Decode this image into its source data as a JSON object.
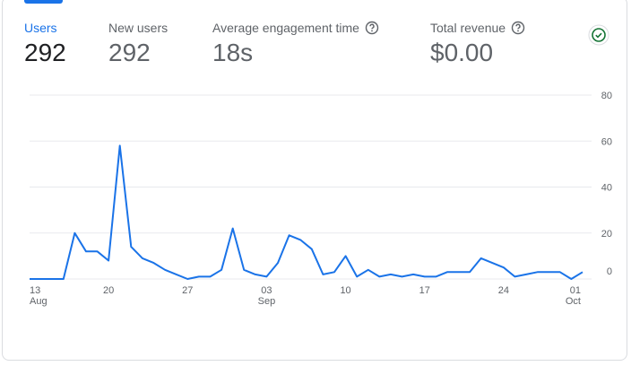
{
  "metrics": [
    {
      "label": "Users",
      "value": "292"
    },
    {
      "label": "New users",
      "value": "292"
    },
    {
      "label": "Average engagement time",
      "value": "18s"
    },
    {
      "label": "Total revenue",
      "value": "$0.00"
    }
  ],
  "chart_data": {
    "type": "line",
    "categories": [
      {
        "day": "13",
        "month": "Aug"
      },
      null,
      null,
      null,
      null,
      null,
      null,
      {
        "day": "20"
      },
      null,
      null,
      null,
      null,
      null,
      null,
      {
        "day": "27"
      },
      null,
      null,
      null,
      null,
      null,
      null,
      {
        "day": "03",
        "month": "Sep"
      },
      null,
      null,
      null,
      null,
      null,
      null,
      {
        "day": "10"
      },
      null,
      null,
      null,
      null,
      null,
      null,
      {
        "day": "17"
      },
      null,
      null,
      null,
      null,
      null,
      null,
      {
        "day": "24"
      },
      null,
      null,
      null,
      null,
      null,
      null,
      {
        "day": "01",
        "month": "Oct"
      }
    ],
    "series": [
      {
        "name": "Users",
        "color": "#1a73e8",
        "values": [
          0,
          0,
          0,
          0,
          20,
          12,
          12,
          8,
          58,
          14,
          9,
          7,
          4,
          2,
          0,
          1,
          1,
          4,
          22,
          4,
          2,
          1,
          7,
          19,
          17,
          13,
          2,
          3,
          10,
          1,
          4,
          1,
          2,
          1,
          2,
          1,
          1,
          3,
          3,
          3,
          9,
          7,
          5,
          1,
          2,
          3,
          3,
          3,
          0,
          3
        ]
      }
    ],
    "ylim": [
      0,
      80
    ],
    "yticks": [
      0,
      20,
      40,
      60,
      80
    ],
    "grid": true
  }
}
